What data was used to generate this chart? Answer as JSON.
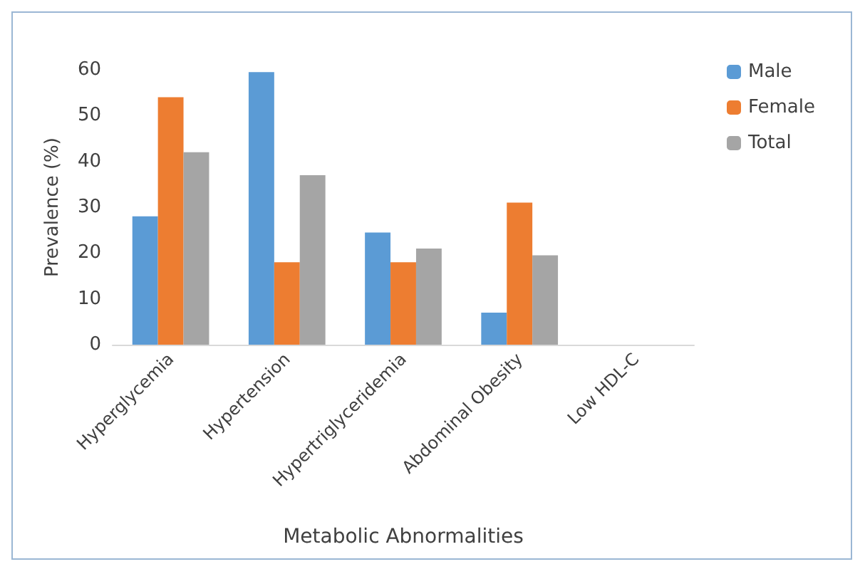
{
  "chart_data": {
    "type": "bar",
    "xlabel": "Metabolic Abnormalities",
    "ylabel": "Prevalence (%)",
    "categories": [
      "Hyperglycemia",
      "Hypertension",
      "Hypertriglyceridemia",
      "Abdominal Obesity",
      "Low HDL-C"
    ],
    "series": [
      {
        "name": "Male",
        "color": "#5b9bd5",
        "values": [
          28,
          59.5,
          24.5,
          7,
          0
        ]
      },
      {
        "name": "Female",
        "color": "#ed7d31",
        "values": [
          54,
          18,
          18,
          31,
          0
        ]
      },
      {
        "name": "Total",
        "color": "#a5a5a5",
        "values": [
          42,
          37,
          21,
          19.5,
          0
        ]
      }
    ],
    "ylim": [
      0,
      60
    ],
    "yticks": [
      0,
      10,
      20,
      30,
      40,
      50,
      60
    ],
    "grid": false,
    "legend": "top right"
  }
}
